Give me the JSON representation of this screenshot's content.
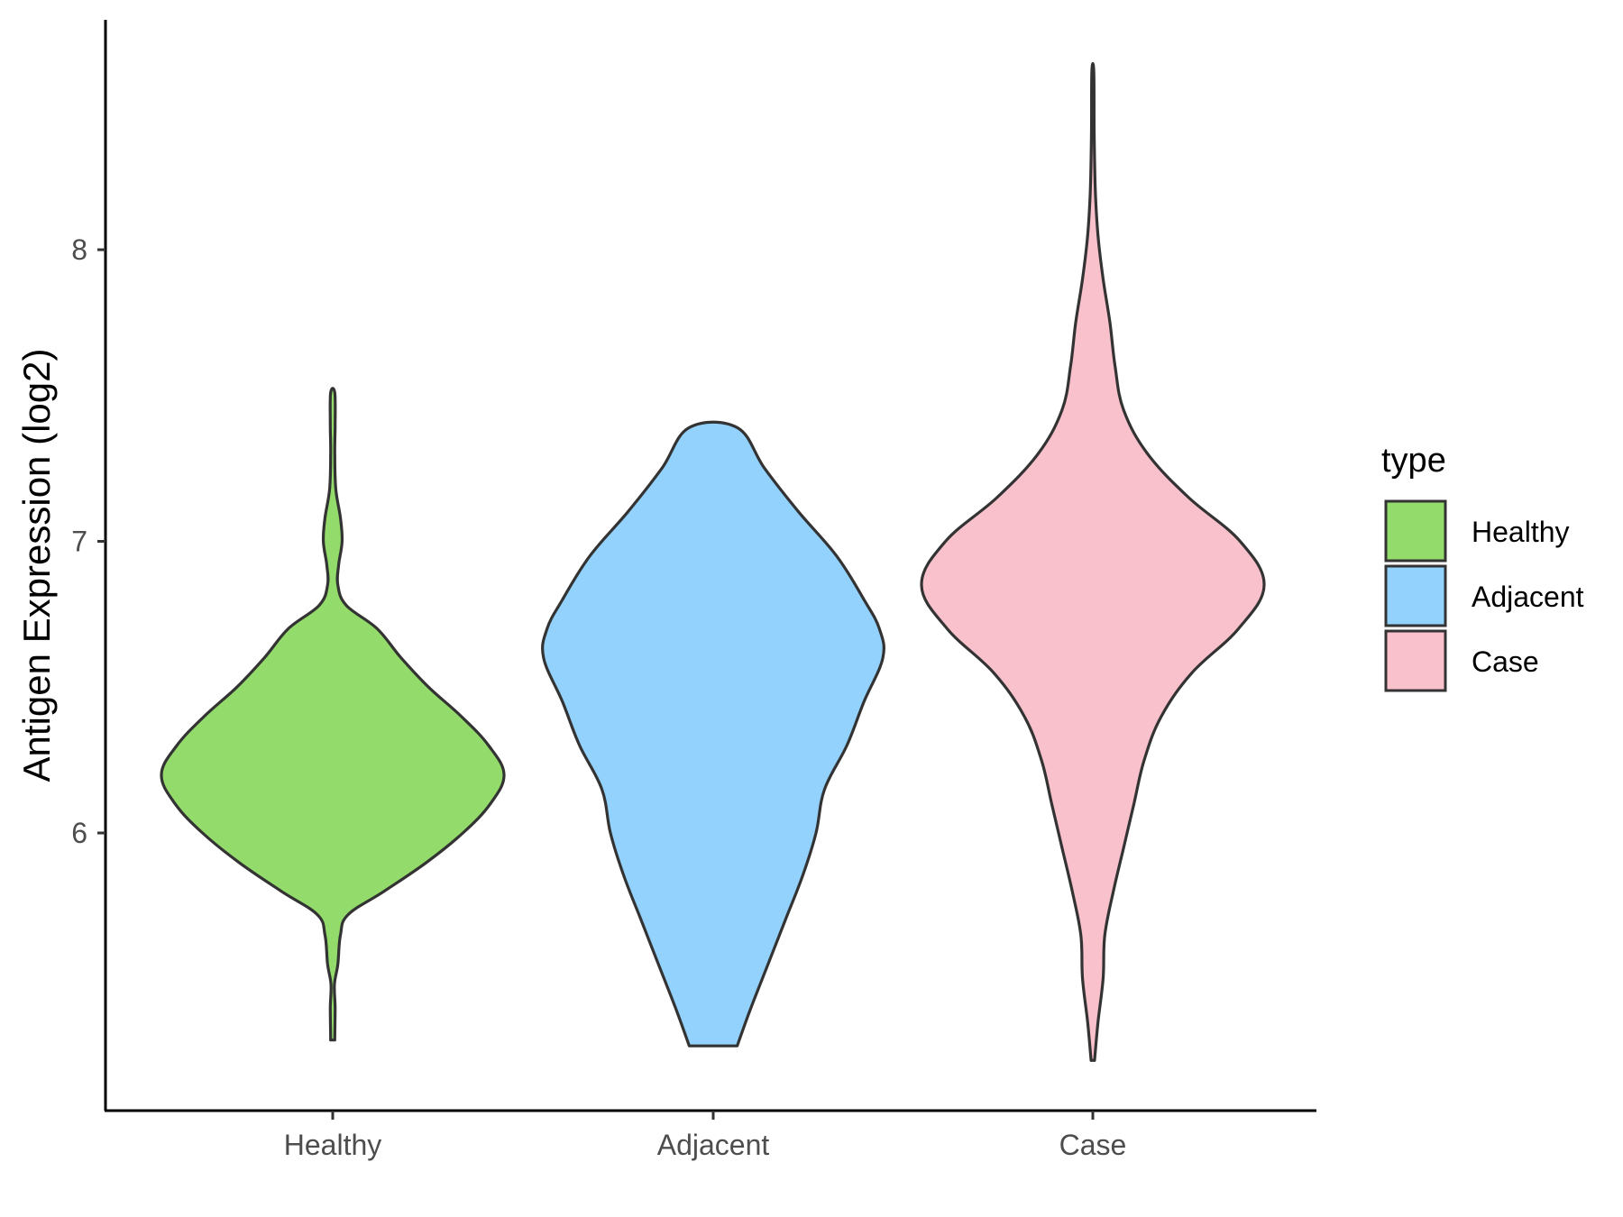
{
  "chart_data": {
    "type": "violin",
    "title": "",
    "xlabel": "",
    "ylabel": "Antigen Expression (log2)",
    "categories": [
      "Healthy",
      "Adjacent",
      "Case"
    ],
    "y_ticks": [
      6,
      7,
      8
    ],
    "ylim": [
      5.05,
      8.8
    ],
    "grid": false,
    "legend": {
      "title": "type",
      "position": "right",
      "entries": [
        "Healthy",
        "Adjacent",
        "Case"
      ]
    },
    "colors": {
      "Healthy": "#93DB6B",
      "Adjacent": "#92D2FD",
      "Case": "#F8C1CC",
      "outline": "#333333"
    },
    "series": [
      {
        "name": "Healthy",
        "min": 5.29,
        "max": 7.51,
        "density": [
          [
            5.29,
            0.012
          ],
          [
            5.4,
            0.014
          ],
          [
            5.48,
            0.01
          ],
          [
            5.55,
            0.03
          ],
          [
            5.65,
            0.045
          ],
          [
            5.72,
            0.09
          ],
          [
            5.8,
            0.3
          ],
          [
            5.9,
            0.55
          ],
          [
            6.0,
            0.76
          ],
          [
            6.1,
            0.92
          ],
          [
            6.2,
            1.0
          ],
          [
            6.3,
            0.91
          ],
          [
            6.4,
            0.75
          ],
          [
            6.5,
            0.56
          ],
          [
            6.6,
            0.4
          ],
          [
            6.7,
            0.26
          ],
          [
            6.78,
            0.08
          ],
          [
            6.85,
            0.03
          ],
          [
            6.92,
            0.035
          ],
          [
            7.0,
            0.055
          ],
          [
            7.08,
            0.045
          ],
          [
            7.18,
            0.018
          ],
          [
            7.3,
            0.012
          ],
          [
            7.4,
            0.014
          ],
          [
            7.51,
            0.012
          ]
        ]
      },
      {
        "name": "Adjacent",
        "min": 5.27,
        "max": 7.39,
        "density": [
          [
            5.27,
            0.14
          ],
          [
            5.4,
            0.22
          ],
          [
            5.55,
            0.32
          ],
          [
            5.7,
            0.42
          ],
          [
            5.85,
            0.52
          ],
          [
            6.0,
            0.6
          ],
          [
            6.15,
            0.65
          ],
          [
            6.3,
            0.78
          ],
          [
            6.45,
            0.88
          ],
          [
            6.6,
            0.99
          ],
          [
            6.7,
            0.97
          ],
          [
            6.8,
            0.88
          ],
          [
            6.95,
            0.72
          ],
          [
            7.1,
            0.5
          ],
          [
            7.25,
            0.3
          ],
          [
            7.39,
            0.14
          ]
        ]
      },
      {
        "name": "Case",
        "min": 5.22,
        "max": 8.61,
        "density": [
          [
            5.22,
            0.01
          ],
          [
            5.35,
            0.03
          ],
          [
            5.5,
            0.06
          ],
          [
            5.65,
            0.07
          ],
          [
            5.8,
            0.12
          ],
          [
            5.95,
            0.18
          ],
          [
            6.1,
            0.24
          ],
          [
            6.25,
            0.3
          ],
          [
            6.4,
            0.4
          ],
          [
            6.55,
            0.58
          ],
          [
            6.7,
            0.85
          ],
          [
            6.85,
            1.0
          ],
          [
            7.0,
            0.86
          ],
          [
            7.15,
            0.56
          ],
          [
            7.3,
            0.32
          ],
          [
            7.45,
            0.18
          ],
          [
            7.6,
            0.13
          ],
          [
            7.75,
            0.1
          ],
          [
            7.9,
            0.06
          ],
          [
            8.05,
            0.03
          ],
          [
            8.2,
            0.015
          ],
          [
            8.4,
            0.008
          ],
          [
            8.61,
            0.006
          ]
        ]
      }
    ]
  }
}
